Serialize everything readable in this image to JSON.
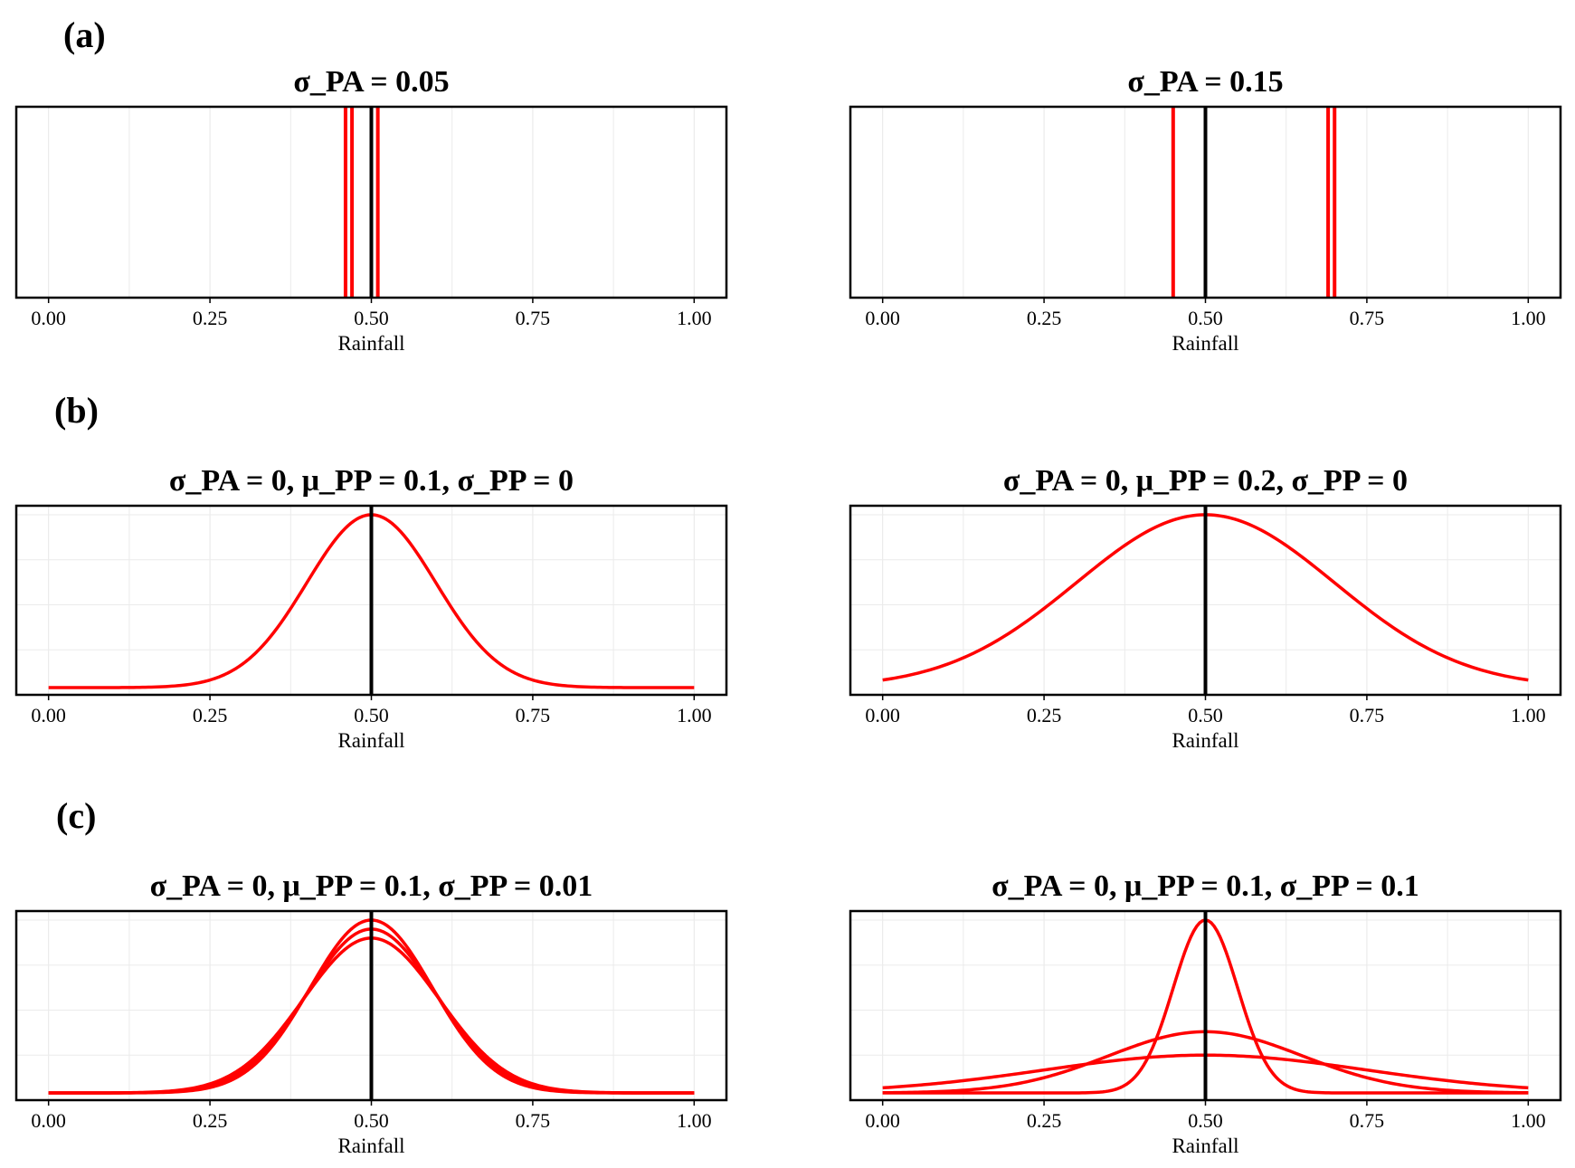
{
  "row_labels": [
    "(a)",
    "(b)",
    "(c)"
  ],
  "chart_data": [
    {
      "type": "line",
      "row": "(a)",
      "title": "σ_PA = 0.05",
      "xlabel": "Rainfall",
      "ylabel": "",
      "xlim": [
        -0.05,
        1.05
      ],
      "xticks": [
        "0.00",
        "0.25",
        "0.50",
        "0.75",
        "1.00"
      ],
      "grid": true,
      "reference_line_x": 0.5,
      "vertical_lines_x": [
        0.46,
        0.47,
        0.51
      ],
      "colors": {
        "lines": "#ff0000",
        "reference": "#000000"
      }
    },
    {
      "type": "line",
      "row": "(a)",
      "title": "σ_PA = 0.15",
      "xlabel": "Rainfall",
      "ylabel": "",
      "xlim": [
        -0.05,
        1.05
      ],
      "xticks": [
        "0.00",
        "0.25",
        "0.50",
        "0.75",
        "1.00"
      ],
      "grid": true,
      "reference_line_x": 0.5,
      "vertical_lines_x": [
        0.45,
        0.69,
        0.7
      ],
      "colors": {
        "lines": "#ff0000",
        "reference": "#000000"
      }
    },
    {
      "type": "line",
      "row": "(b)",
      "title": "σ_PA = 0, μ_PP = 0.1, σ_PP = 0",
      "xlabel": "Rainfall",
      "ylabel": "",
      "xlim": [
        -0.05,
        1.05
      ],
      "ylim": [
        0,
        1.05
      ],
      "xticks": [
        "0.00",
        "0.25",
        "0.50",
        "0.75",
        "1.00"
      ],
      "grid": true,
      "reference_line_x": 0.5,
      "series": [
        {
          "mean": 0.5,
          "sd": 0.1,
          "x_range": [
            0,
            1
          ],
          "peak": 1.0
        }
      ],
      "colors": {
        "lines": "#ff0000",
        "reference": "#000000"
      }
    },
    {
      "type": "line",
      "row": "(b)",
      "title": "σ_PA = 0, μ_PP = 0.2, σ_PP = 0",
      "xlabel": "Rainfall",
      "ylabel": "",
      "xlim": [
        -0.05,
        1.05
      ],
      "ylim": [
        0,
        1.05
      ],
      "xticks": [
        "0.00",
        "0.25",
        "0.50",
        "0.75",
        "1.00"
      ],
      "grid": true,
      "reference_line_x": 0.5,
      "series": [
        {
          "mean": 0.5,
          "sd": 0.2,
          "x_range": [
            0,
            1
          ],
          "peak": 1.0
        }
      ],
      "colors": {
        "lines": "#ff0000",
        "reference": "#000000"
      }
    },
    {
      "type": "line",
      "row": "(c)",
      "title": "σ_PA = 0, μ_PP = 0.1, σ_PP = 0.01",
      "xlabel": "Rainfall",
      "ylabel": "",
      "xlim": [
        -0.05,
        1.05
      ],
      "ylim": [
        0,
        1.05
      ],
      "xticks": [
        "0.00",
        "0.25",
        "0.50",
        "0.75",
        "1.00"
      ],
      "grid": true,
      "reference_line_x": 0.5,
      "series": [
        {
          "mean": 0.5,
          "sd": 0.095,
          "x_range": [
            0,
            1
          ],
          "peak": 1.0
        },
        {
          "mean": 0.5,
          "sd": 0.1,
          "x_range": [
            0,
            1
          ],
          "peak": 0.95
        },
        {
          "mean": 0.5,
          "sd": 0.105,
          "x_range": [
            0,
            1
          ],
          "peak": 0.9
        }
      ],
      "colors": {
        "lines": "#ff0000",
        "reference": "#000000"
      }
    },
    {
      "type": "line",
      "row": "(c)",
      "title": "σ_PA = 0, μ_PP = 0.1, σ_PP = 0.1",
      "xlabel": "Rainfall",
      "ylabel": "",
      "xlim": [
        -0.05,
        1.05
      ],
      "ylim": [
        0,
        1.05
      ],
      "xticks": [
        "0.00",
        "0.25",
        "0.50",
        "0.75",
        "1.00"
      ],
      "grid": true,
      "reference_line_x": 0.5,
      "series": [
        {
          "mean": 0.5,
          "sd": 0.05,
          "x_range": [
            0,
            1
          ],
          "peak": 1.0
        },
        {
          "mean": 0.5,
          "sd": 0.15,
          "x_range": [
            0,
            1
          ],
          "peak": 0.38
        },
        {
          "mean": 0.5,
          "sd": 0.25,
          "x_range": [
            0,
            1
          ],
          "peak": 0.25
        }
      ],
      "colors": {
        "lines": "#ff0000",
        "reference": "#000000"
      }
    }
  ]
}
